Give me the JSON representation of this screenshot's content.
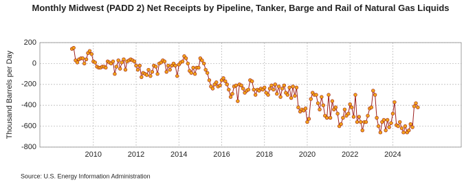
{
  "chart_data": {
    "type": "line",
    "title": "Monthly Midwest (PADD 2) Net Receipts by Pipeline, Tanker, Barge and Rail of Natural Gas Liquids",
    "y_label": "Thousand Barrels per Day",
    "source": "Source: U.S. Energy Information Administration",
    "x": [
      2009,
      2009.08,
      2009.17,
      2009.25,
      2009.33,
      2009.42,
      2009.5,
      2009.58,
      2009.67,
      2009.75,
      2009.83,
      2009.92,
      2010,
      2010.08,
      2010.17,
      2010.25,
      2010.33,
      2010.42,
      2010.5,
      2010.58,
      2010.67,
      2010.75,
      2010.83,
      2010.92,
      2011,
      2011.08,
      2011.17,
      2011.25,
      2011.33,
      2011.42,
      2011.5,
      2011.58,
      2011.67,
      2011.75,
      2011.83,
      2011.92,
      2012,
      2012.08,
      2012.17,
      2012.25,
      2012.33,
      2012.42,
      2012.5,
      2012.58,
      2012.67,
      2012.75,
      2012.83,
      2012.92,
      2013,
      2013.08,
      2013.17,
      2013.25,
      2013.33,
      2013.42,
      2013.5,
      2013.58,
      2013.67,
      2013.75,
      2013.83,
      2013.92,
      2014,
      2014.08,
      2014.17,
      2014.25,
      2014.33,
      2014.42,
      2014.5,
      2014.58,
      2014.67,
      2014.75,
      2014.83,
      2014.92,
      2015,
      2015.08,
      2015.17,
      2015.25,
      2015.33,
      2015.42,
      2015.5,
      2015.58,
      2015.67,
      2015.75,
      2015.83,
      2015.92,
      2016,
      2016.08,
      2016.17,
      2016.25,
      2016.33,
      2016.42,
      2016.5,
      2016.58,
      2016.67,
      2016.75,
      2016.83,
      2016.92,
      2017,
      2017.08,
      2017.17,
      2017.25,
      2017.33,
      2017.42,
      2017.5,
      2017.58,
      2017.67,
      2017.75,
      2017.83,
      2017.92,
      2018,
      2018.08,
      2018.17,
      2018.25,
      2018.33,
      2018.42,
      2018.5,
      2018.58,
      2018.67,
      2018.75,
      2018.83,
      2018.92,
      2019,
      2019.08,
      2019.17,
      2019.25,
      2019.33,
      2019.42,
      2019.5,
      2019.58,
      2019.67,
      2019.75,
      2019.83,
      2019.92,
      2020,
      2020.08,
      2020.17,
      2020.25,
      2020.33,
      2020.42,
      2020.5,
      2020.58,
      2020.67,
      2020.75,
      2020.83,
      2020.92,
      2021,
      2021.08,
      2021.17,
      2021.25,
      2021.33,
      2021.42,
      2021.5,
      2021.58,
      2021.67,
      2021.75,
      2021.83,
      2021.92,
      2022,
      2022.08,
      2022.17,
      2022.25,
      2022.33,
      2022.42,
      2022.5,
      2022.58,
      2022.67,
      2022.75,
      2022.83,
      2022.92,
      2023,
      2023.08,
      2023.17,
      2023.25,
      2023.33,
      2023.42,
      2023.5,
      2023.58,
      2023.67,
      2023.75,
      2023.83,
      2023.92,
      2024,
      2024.08,
      2024.17,
      2024.25,
      2024.33,
      2024.42,
      2024.5,
      2024.58,
      2024.67,
      2024.75,
      2024.83,
      2024.92,
      2025,
      2025.08,
      2025.17
    ],
    "series": [
      {
        "name": "Net Receipts",
        "color": "#9b1c1c",
        "marker_color": "#f2a51a",
        "values": [
          140,
          150,
          30,
          10,
          40,
          50,
          50,
          0,
          40,
          100,
          120,
          90,
          20,
          10,
          -30,
          -40,
          -40,
          -30,
          -30,
          -40,
          20,
          10,
          0,
          20,
          -100,
          -30,
          30,
          -50,
          10,
          40,
          -60,
          20,
          30,
          40,
          30,
          20,
          -20,
          -60,
          -20,
          -130,
          -90,
          -100,
          -110,
          -60,
          -120,
          -80,
          -20,
          -30,
          -100,
          0,
          10,
          30,
          20,
          -80,
          -20,
          -60,
          -20,
          0,
          -20,
          -120,
          -10,
          10,
          20,
          70,
          50,
          0,
          -70,
          -90,
          -40,
          -100,
          -40,
          -40,
          50,
          30,
          0,
          -60,
          -90,
          -160,
          -220,
          -240,
          -200,
          -180,
          -220,
          -210,
          -160,
          -140,
          -170,
          -200,
          -250,
          -320,
          -290,
          -220,
          -210,
          -360,
          -200,
          -210,
          -240,
          -280,
          -260,
          -250,
          -160,
          -170,
          -250,
          -300,
          -250,
          -260,
          -240,
          -250,
          -230,
          -280,
          -300,
          -240,
          -210,
          -250,
          -200,
          -290,
          -220,
          -320,
          -240,
          -210,
          -280,
          -300,
          -230,
          -330,
          -220,
          -310,
          -230,
          -420,
          -460,
          -440,
          -450,
          -430,
          -560,
          -530,
          -340,
          -280,
          -300,
          -300,
          -380,
          -440,
          -320,
          -400,
          -500,
          -520,
          -300,
          -520,
          -360,
          -440,
          -420,
          -480,
          -600,
          -580,
          -520,
          -440,
          -500,
          -480,
          -390,
          -420,
          -510,
          -300,
          -560,
          -510,
          -560,
          -640,
          -560,
          -560,
          -500,
          -430,
          -420,
          -260,
          -300,
          -520,
          -600,
          -660,
          -560,
          -540,
          -640,
          -540,
          -610,
          -570,
          -480,
          -370,
          -590,
          -600,
          -560,
          -620,
          -660,
          -600,
          -660,
          -640,
          -580,
          -610,
          -410,
          -380,
          -420
        ]
      }
    ],
    "xlim": [
      2007.5,
      2027.2
    ],
    "xticks": [
      2010,
      2012,
      2014,
      2016,
      2018,
      2020,
      2022,
      2024
    ],
    "ylim": [
      -800,
      200
    ],
    "yticks": [
      -800,
      -600,
      -400,
      -200,
      0,
      200
    ],
    "grid": true
  }
}
